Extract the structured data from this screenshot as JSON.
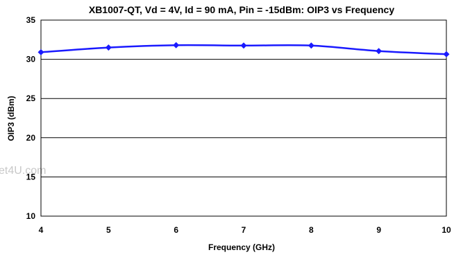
{
  "chart_data": {
    "type": "line",
    "title": "XB1007-QT, Vd = 4V, Id = 90 mA, Pin = -15dBm: OIP3 vs Frequency",
    "xlabel": "Frequency (GHz)",
    "ylabel": "OIP3 (dBm)",
    "x": [
      4,
      5,
      6,
      7,
      8,
      9,
      10
    ],
    "xlim": [
      4,
      10
    ],
    "ylim": [
      10,
      35
    ],
    "xticks": [
      4,
      5,
      6,
      7,
      8,
      9,
      10
    ],
    "yticks": [
      10,
      15,
      20,
      25,
      30,
      35
    ],
    "grid": true,
    "series": [
      {
        "values": [
          30.9,
          31.5,
          31.8,
          31.75,
          31.75,
          31.05,
          30.65
        ],
        "color": "#1a1aff",
        "marker": "diamond"
      }
    ]
  },
  "watermark": "et4U.com"
}
